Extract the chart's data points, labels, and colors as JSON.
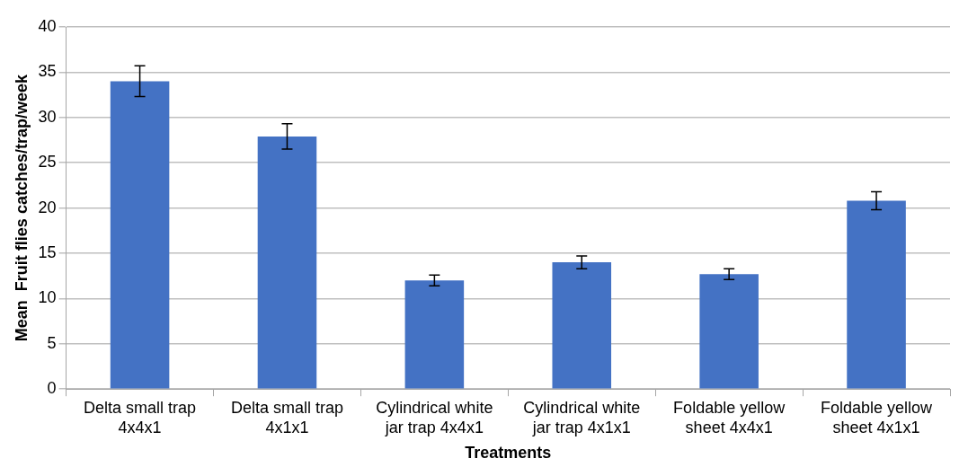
{
  "chart_data": {
    "type": "bar",
    "xlabel": "Treatments",
    "ylabel": "Mean  Fruit flies catches/trap/week",
    "categories": [
      "Delta small trap 4x4x1",
      "Delta small trap 4x1x1",
      "Cylindrical white jar trap 4x4x1",
      "Cylindrical white jar trap 4x1x1",
      "Foldable yellow sheet 4x4x1",
      "Foldable yellow sheet 4x1x1"
    ],
    "values": [
      34.0,
      27.9,
      12.0,
      14.0,
      12.7,
      20.8
    ],
    "errors": [
      1.7,
      1.4,
      0.6,
      0.7,
      0.6,
      1.0
    ],
    "color": "#4472c4",
    "ylim": [
      0,
      40
    ],
    "yticks": [
      0,
      5,
      10,
      15,
      20,
      25,
      30,
      35,
      40
    ],
    "grid": "y",
    "legend": false
  }
}
